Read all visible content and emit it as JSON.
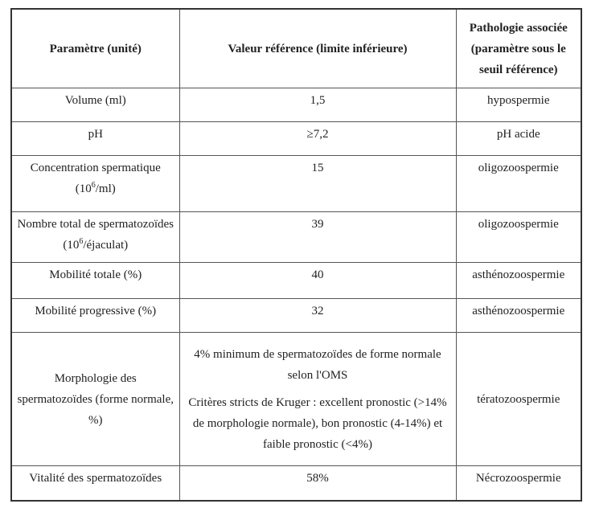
{
  "table": {
    "header": [
      "Paramètre (unité)",
      "Valeur référence (limite inférieure)",
      "Pathologie associée (paramètre sous le seuil référence)"
    ],
    "rows": [
      [
        "Volume (ml)",
        "1,5",
        "hypospermie"
      ],
      [
        "pH",
        "≥7,2",
        "pH acide"
      ],
      [
        {
          "before": "Concentration spermatique (10",
          "sup": "6",
          "after": "/ml)"
        },
        "15",
        "oligozoospermie"
      ],
      [
        {
          "before": "Nombre total de spermatozoïdes (10",
          "sup": "6",
          "after": "/éjaculat)"
        },
        "39",
        "oligozoospermie"
      ],
      [
        "Mobilité totale (%)",
        "40",
        "asthénozoospermie"
      ],
      [
        "Mobilité progressive (%)",
        "32",
        "asthénozoospermie"
      ],
      [
        "Morphologie des spermatozoïdes (forme normale, %)",
        [
          "4% minimum de spermatozoïdes de forme normale selon l'OMS",
          "Critères stricts de Kruger : excellent pronostic (>14% de morphologie normale), bon pronostic (4-14%) et faible pronostic (<4%)"
        ],
        "tératozoospermie"
      ],
      [
        "Vitalité des spermatozoïdes",
        "58%",
        "Nécrozoospermie"
      ]
    ]
  }
}
